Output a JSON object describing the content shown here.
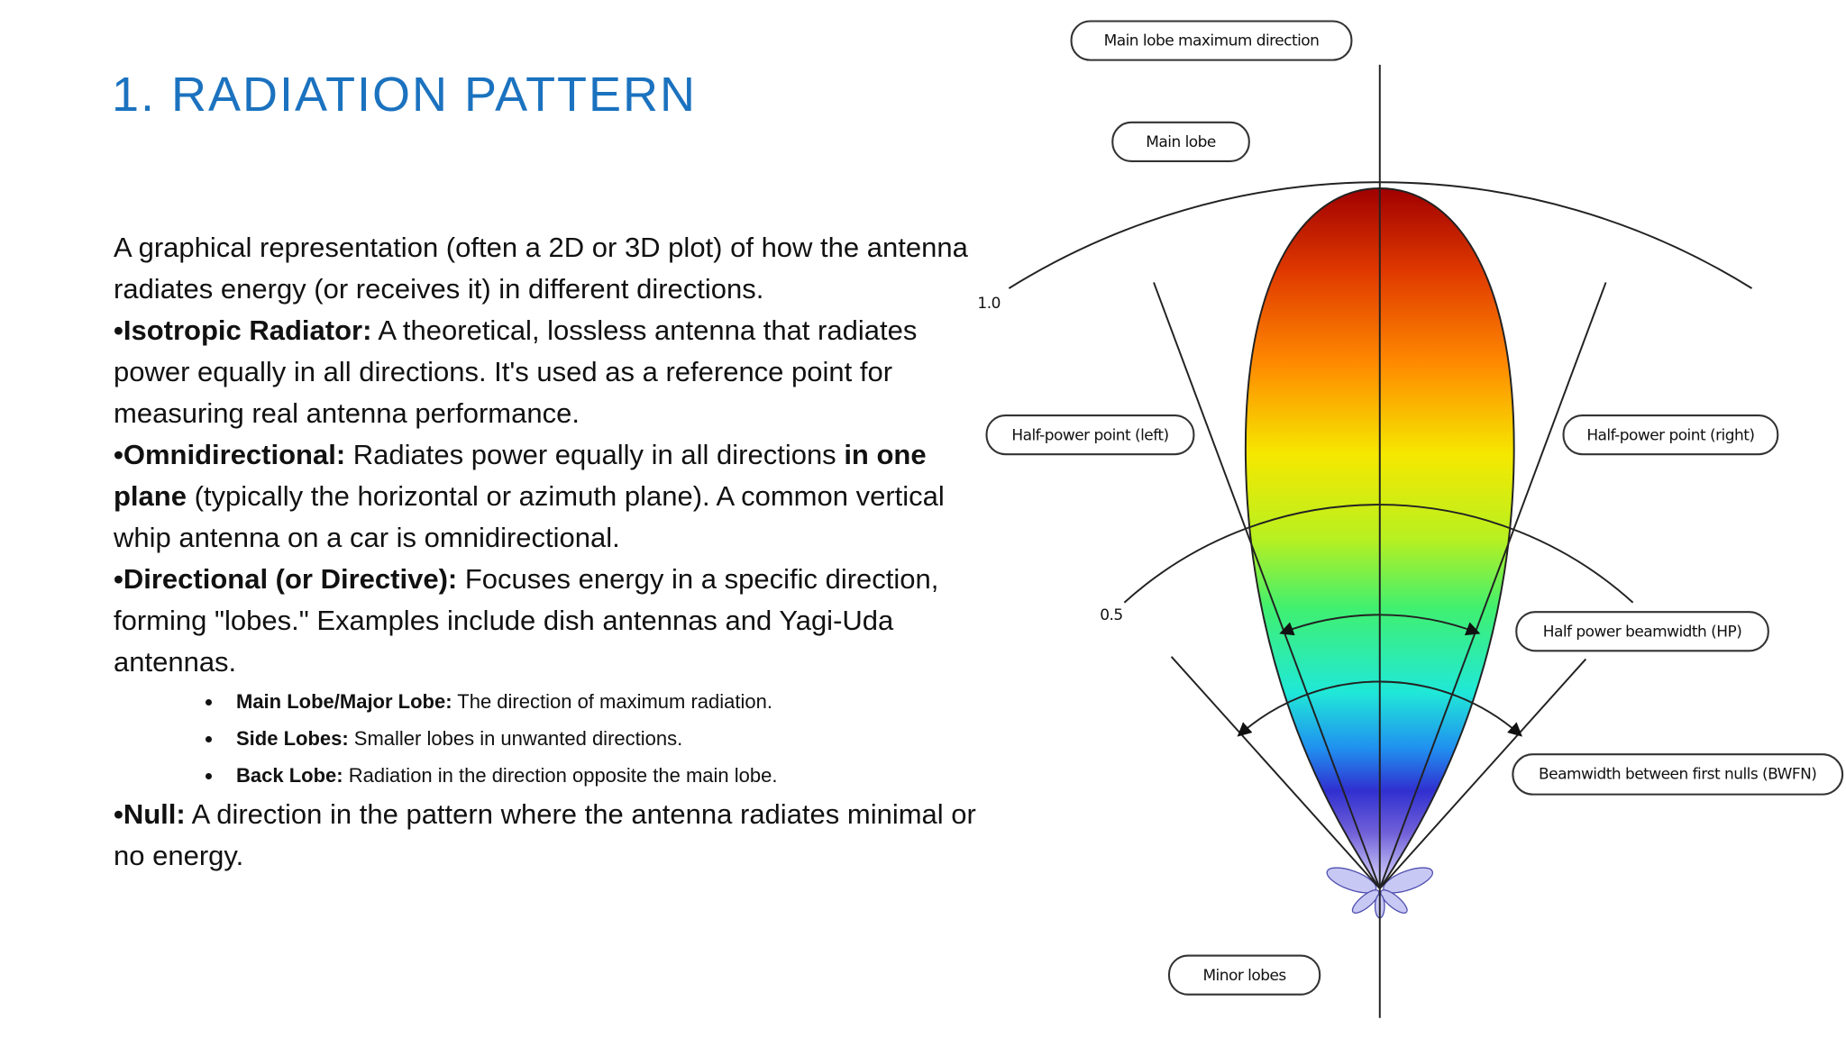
{
  "title": "1. RADIATION PATTERN",
  "intro": "A graphical representation (often a 2D or 3D plot) of how the antenna radiates energy (or receives it) in different directions.",
  "items": [
    {
      "term": "•Isotropic Radiator:",
      "text": " A theoretical, lossless antenna that radiates power equally in all directions. It's used as a reference point for measuring real antenna performance."
    },
    {
      "term": "•Omnidirectional:",
      "text": " Radiates power equally in all directions ",
      "emphasis": "in one plane",
      "text_after": " (typically the horizontal or azimuth plane). A common vertical whip antenna on a car is omnidirectional."
    },
    {
      "term": "•Directional (or Directive):",
      "text": " Focuses energy in a specific direction, forming \"lobes.\" Examples include dish antennas and Yagi-Uda antennas."
    }
  ],
  "sub_items": [
    {
      "term": "Main Lobe/Major Lobe:",
      "text": " The direction of maximum radiation."
    },
    {
      "term": "Side Lobes:",
      "text": " Smaller lobes in unwanted directions."
    },
    {
      "term": "Back Lobe:",
      "text": " Radiation in the direction opposite the main lobe."
    }
  ],
  "closing": {
    "term": "•Null:",
    "text": " A direction in the pattern where the antenna radiates minimal or no energy."
  },
  "diagram": {
    "labels": {
      "max_direction": "Main lobe maximum direction",
      "main_lobe": "Main lobe",
      "hp_left": "Half-power point (left)",
      "hp_right": "Half-power point (right)",
      "hpbw": "Half power beamwidth (HP)",
      "bwfn": "Beamwidth between first nulls (BWFN)",
      "minor_lobes": "Minor lobes"
    },
    "scale_outer": "1.0",
    "scale_inner": "0.5"
  }
}
